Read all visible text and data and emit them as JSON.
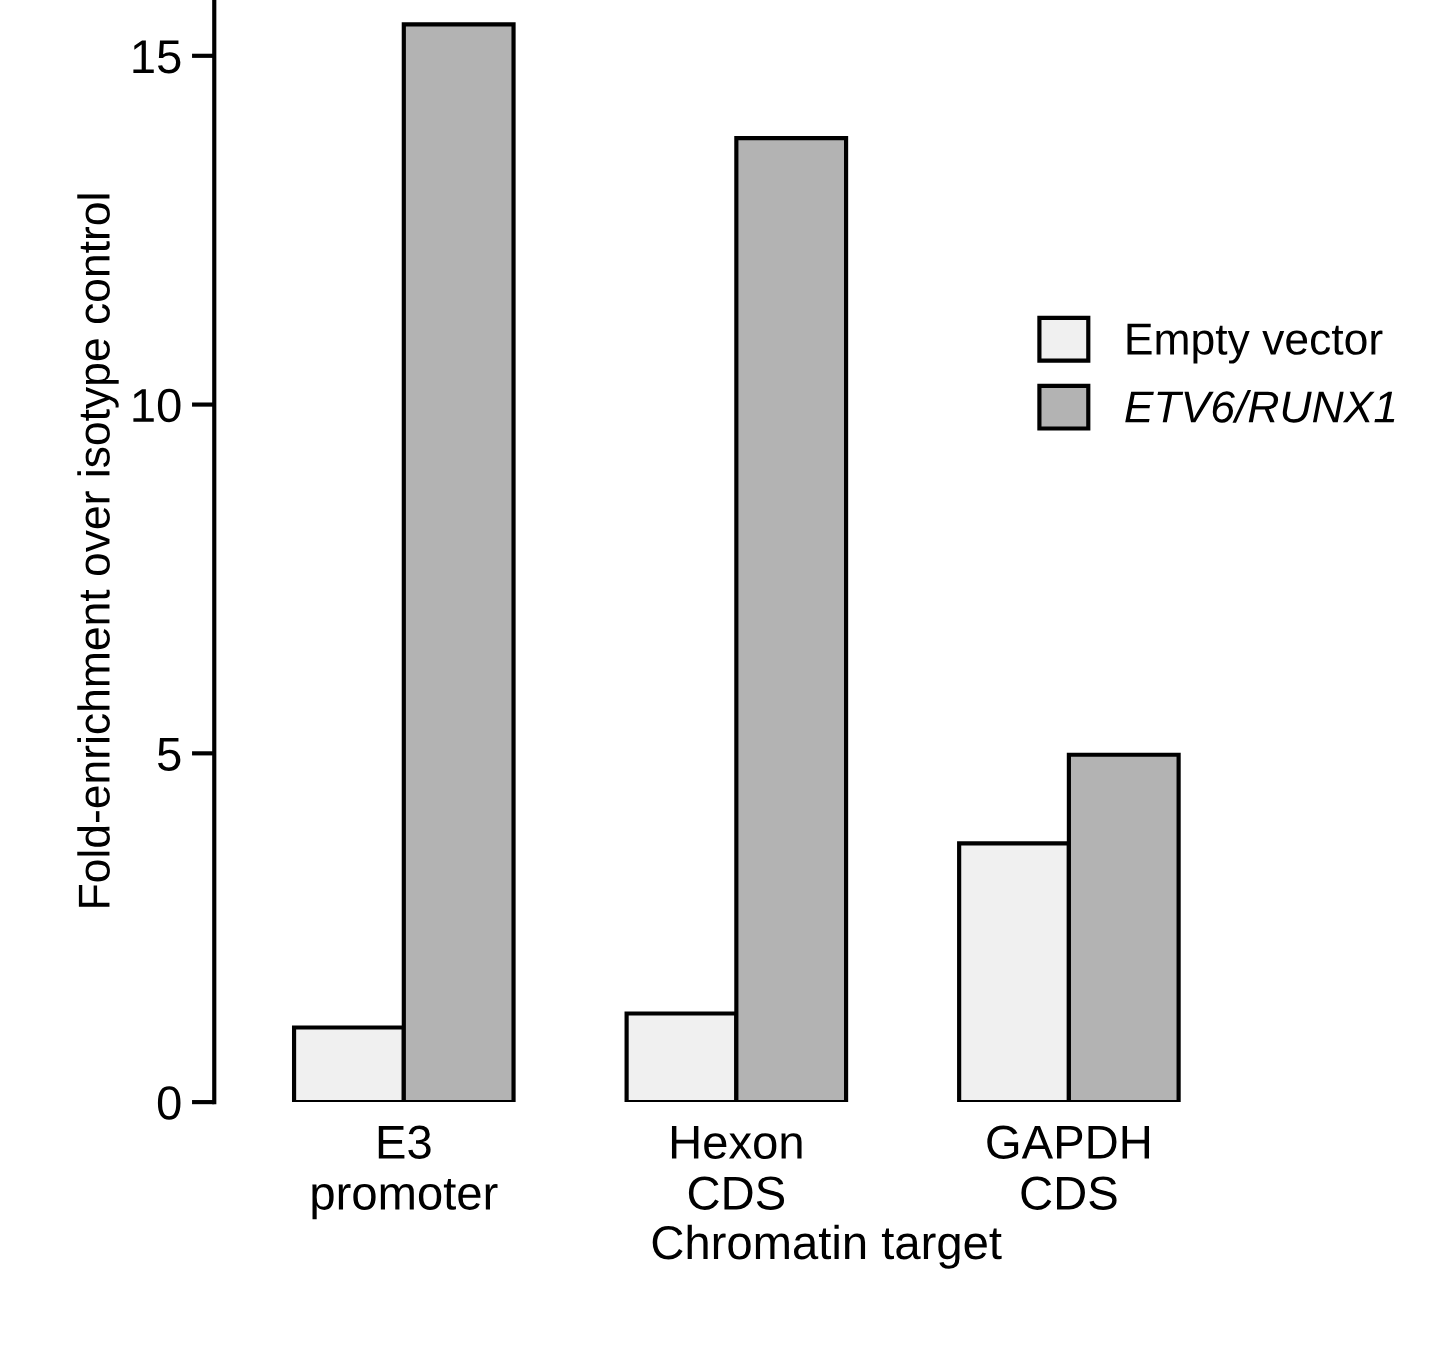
{
  "chart_data": {
    "type": "bar",
    "xlabel": "Chromatin target",
    "ylabel": "Fold-enrichment over isotype control",
    "categories": [
      "E3\npromoter",
      "Hexon\nCDS",
      "GAPDH\nCDS"
    ],
    "series": [
      {
        "name": "Empty vector",
        "color": "#f0f0f0",
        "values": [
          1.07,
          1.27,
          3.71
        ]
      },
      {
        "name": "ETV6/RUNX1",
        "color": "#b3b3b3",
        "values": [
          15.45,
          13.82,
          4.98
        ]
      }
    ],
    "ylim": [
      0,
      15.8
    ],
    "yticks": [
      0,
      5,
      10,
      15
    ],
    "grid": false,
    "legend": "right"
  }
}
